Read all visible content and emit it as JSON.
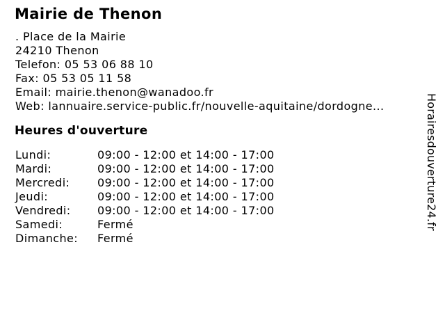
{
  "header": {
    "title": "Mairie de Thenon"
  },
  "contact": {
    "street": ". Place de la Mairie",
    "city": "24210 Thenon",
    "phone": "Telefon: 05 53 06 88 10",
    "fax": "Fax: 05 53 05 11 58",
    "email": "Email: mairie.thenon@wanadoo.fr",
    "web": "Web: lannuaire.service-public.fr/nouvelle-aquitaine/dordogne..."
  },
  "hours": {
    "heading": "Heures d'ouverture",
    "rows": [
      {
        "day": "Lundi:",
        "time": "09:00 - 12:00 et 14:00 - 17:00"
      },
      {
        "day": "Mardi:",
        "time": "09:00 - 12:00 et 14:00 - 17:00"
      },
      {
        "day": "Mercredi:",
        "time": "09:00 - 12:00 et 14:00 - 17:00"
      },
      {
        "day": "Jeudi:",
        "time": "09:00 - 12:00 et 14:00 - 17:00"
      },
      {
        "day": "Vendredi:",
        "time": "09:00 - 12:00 et 14:00 - 17:00"
      },
      {
        "day": "Samedi:",
        "time": "Fermé"
      },
      {
        "day": "Dimanche:",
        "time": "Fermé"
      }
    ]
  },
  "watermark": {
    "text": "Horairesdouverture24.fr"
  },
  "colors": {
    "background": "#ffffff",
    "text": "#000000"
  }
}
